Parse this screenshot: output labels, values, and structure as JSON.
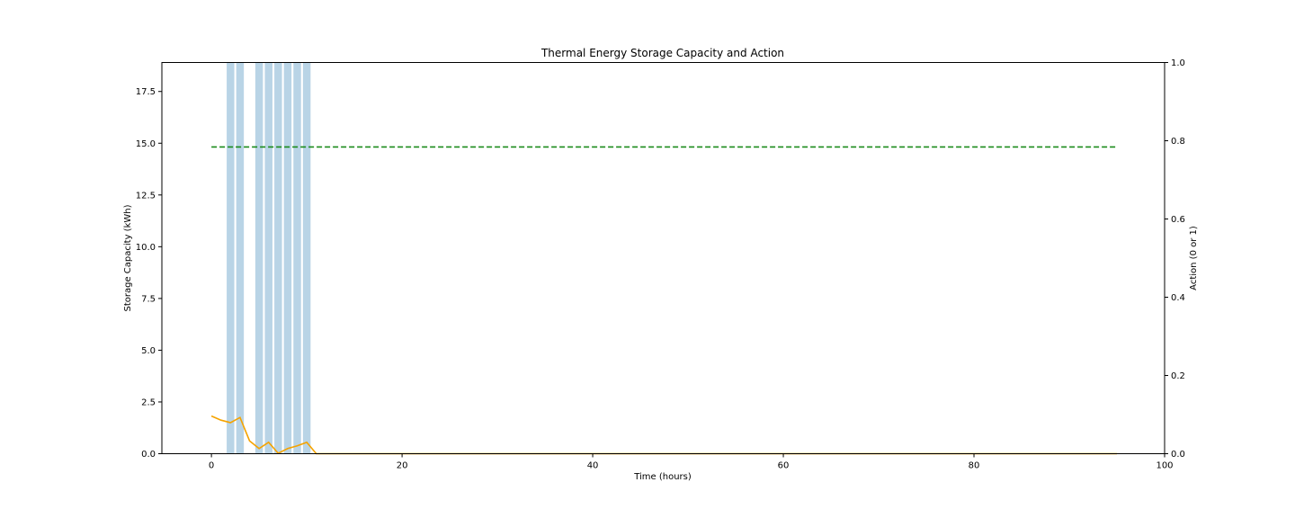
{
  "chart_data": {
    "type": "line",
    "title": "Thermal Energy Storage Capacity and Action",
    "xlabel": "Time (hours)",
    "ylabel": "Storage Capacity (kWh)",
    "y2label": "Action (0 or 1)",
    "xlim": [
      -5.2,
      100
    ],
    "ylim": [
      0,
      18.9
    ],
    "y2lim": [
      0,
      1.0
    ],
    "xticks": [
      0,
      20,
      40,
      60,
      80,
      100
    ],
    "yticks": [
      0.0,
      2.5,
      5.0,
      7.5,
      10.0,
      12.5,
      15.0,
      17.5
    ],
    "y2ticks": [
      0.0,
      0.2,
      0.4,
      0.6,
      0.8,
      1.0
    ],
    "xtick_labels": [
      "0",
      "20",
      "40",
      "60",
      "80",
      "100"
    ],
    "ytick_labels": [
      "0.0",
      "2.5",
      "5.0",
      "7.5",
      "10.0",
      "12.5",
      "15.0",
      "17.5"
    ],
    "y2tick_labels": [
      "0.0",
      "0.2",
      "0.4",
      "0.6",
      "0.8",
      "1.0"
    ],
    "action_bars": {
      "axis": "right",
      "color": "#b9d4e6",
      "width": 0.8,
      "x": [
        2,
        3,
        5,
        6,
        7,
        8,
        9,
        10
      ],
      "values": [
        1,
        1,
        1,
        1,
        1,
        1,
        1,
        1
      ]
    },
    "series": [
      {
        "axis": "left",
        "color": "#f5a300",
        "style": "solid",
        "x": [
          0,
          1,
          2,
          3,
          4,
          5,
          6,
          7,
          8,
          9,
          10,
          11,
          95
        ],
        "values": [
          1.82,
          1.62,
          1.5,
          1.75,
          0.62,
          0.25,
          0.55,
          0.02,
          0.25,
          0.38,
          0.55,
          0.0,
          0.0
        ]
      },
      {
        "axis": "left",
        "color": "#1a8a1a",
        "style": "dashed",
        "x": [
          0,
          95
        ],
        "values": [
          14.82,
          14.82
        ]
      }
    ],
    "grid": false
  }
}
